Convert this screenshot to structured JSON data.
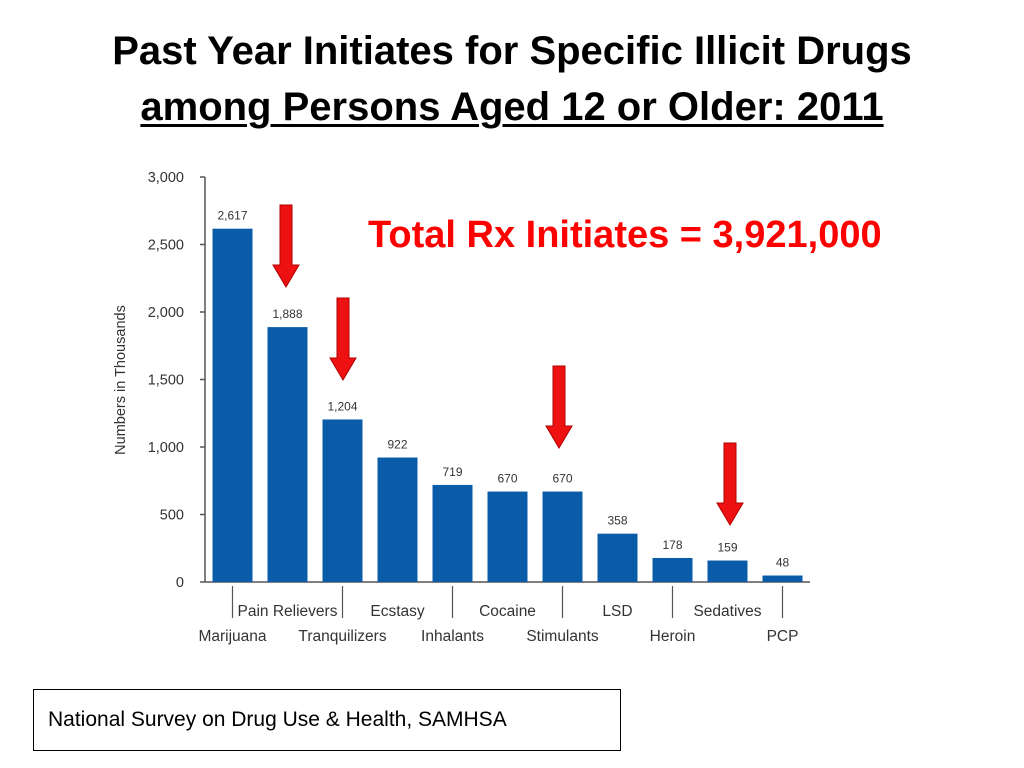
{
  "title": {
    "line1": "Past Year Initiates for Specific Illicit Drugs",
    "line2": "among Persons Aged 12 or Older: 2011"
  },
  "callout": "Total Rx Initiates = 3,921,000",
  "source": "National Survey on Drug Use & Health, SAMHSA",
  "colors": {
    "bar": "#0a5ca8",
    "arrow": "#ee1111",
    "callout": "#ff0000"
  },
  "chart_data": {
    "type": "bar",
    "ylabel": "Numbers in Thousands",
    "ylim": [
      0,
      3000
    ],
    "yticks": [
      0,
      500,
      1000,
      1500,
      2000,
      2500,
      3000
    ],
    "ytick_labels": [
      "0",
      "500",
      "1,000",
      "1,500",
      "2,000",
      "2,500",
      "3,000"
    ],
    "categories": [
      "Marijuana",
      "Pain Relievers",
      "Tranquilizers",
      "Ecstasy",
      "Inhalants",
      "Cocaine",
      "Stimulants",
      "LSD",
      "Heroin",
      "Sedatives",
      "PCP"
    ],
    "values": [
      2617,
      1888,
      1204,
      922,
      719,
      670,
      670,
      358,
      178,
      159,
      48
    ],
    "value_labels": [
      "2,617",
      "1,888",
      "1,204",
      "922",
      "719",
      "670",
      "670",
      "358",
      "178",
      "159",
      "48"
    ],
    "highlighted": [
      "Pain Relievers",
      "Tranquilizers",
      "Stimulants",
      "Sedatives"
    ],
    "grid": false
  }
}
